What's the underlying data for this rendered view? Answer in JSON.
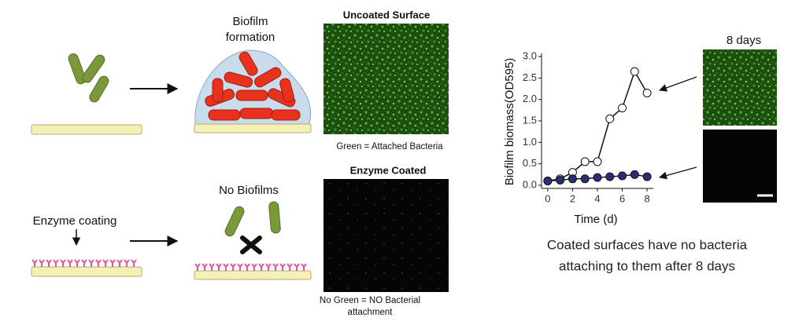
{
  "diagram": {
    "biofilm_formation": [
      "Biofilm",
      "formation"
    ],
    "uncoated_title": "Uncoated Surface",
    "uncoated_caption": "Green = Attached Bacteria",
    "coated_title": "Enzyme Coated",
    "no_biofilms": "No Biofilms",
    "enzyme_coating": "Enzyme coating",
    "coated_caption": [
      "No Green = NO Bacterial",
      "attachment"
    ],
    "days_label": "8 days",
    "summary": [
      "Coated surfaces have no bacteria",
      "attaching to them after 8 days"
    ]
  },
  "chart_data": {
    "type": "line",
    "xlabel": "Time (d)",
    "ylabel": "Biofilm biomass(OD595)",
    "x": [
      0,
      1,
      2,
      3,
      4,
      5,
      6,
      7,
      8
    ],
    "series": [
      {
        "color": "#ffffff",
        "values": [
          0.1,
          0.15,
          0.3,
          0.55,
          0.55,
          1.55,
          1.8,
          2.65,
          2.15
        ]
      },
      {
        "color": "#2b2d7a",
        "values": [
          0.1,
          0.12,
          0.15,
          0.15,
          0.18,
          0.2,
          0.22,
          0.25,
          0.2
        ]
      }
    ],
    "xlim": [
      -0.5,
      8.5
    ],
    "xticks": [
      0,
      2,
      4,
      6,
      8
    ],
    "ylim": [
      0,
      3.0
    ],
    "yticks": [
      {
        "value": 0,
        "label": "0.0"
      },
      {
        "value": 0.5,
        "label": "0.5"
      },
      {
        "value": 1,
        "label": "1.0"
      },
      {
        "value": 1.5,
        "label": "1.5"
      },
      {
        "value": 2,
        "label": "2.0"
      },
      {
        "value": 2.5,
        "label": "2.5"
      },
      {
        "value": 3,
        "label": "3.0"
      }
    ]
  }
}
